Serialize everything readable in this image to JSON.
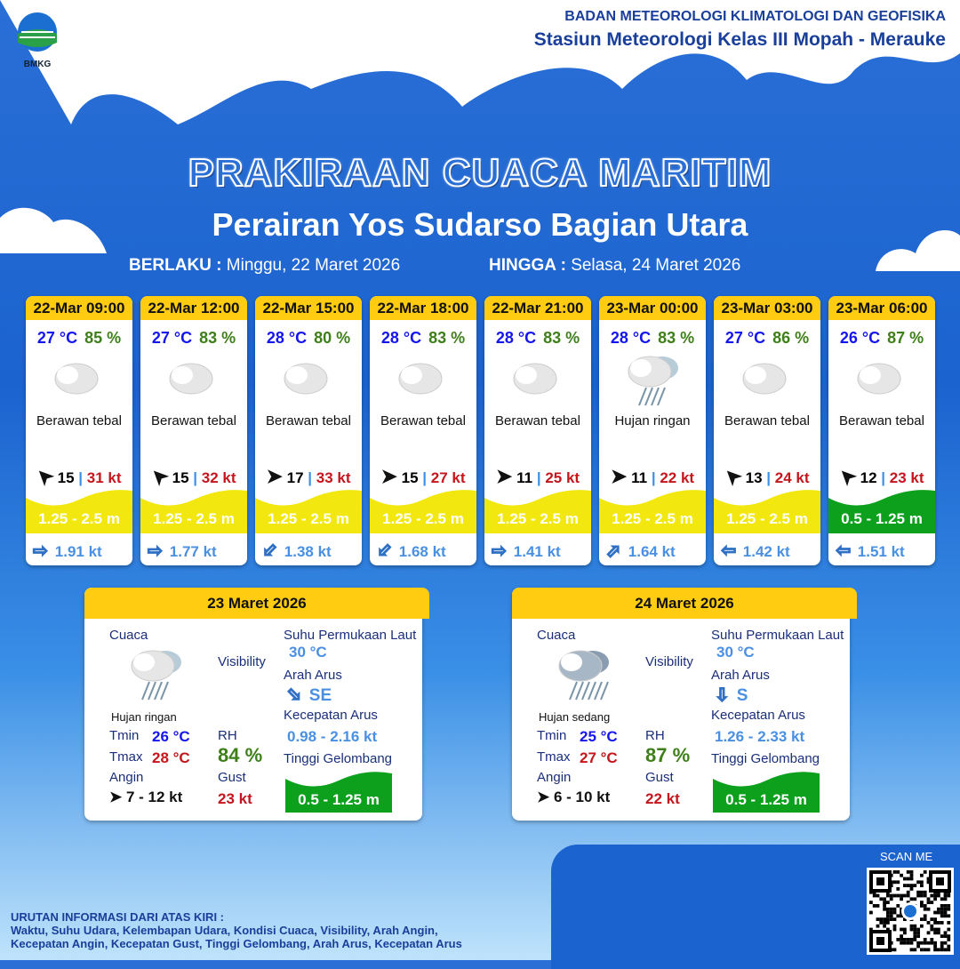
{
  "header": {
    "agency": "BADAN METEOROLOGI KLIMATOLOGI DAN GEOFISIKA",
    "station": "Stasiun Meteorologi Kelas III Mopah - Merauke",
    "logo_text": "BMKG"
  },
  "title": "PRAKIRAAN CUACA MARITIM",
  "subtitle": "Perairan Yos Sudarso Bagian Utara",
  "validity": {
    "from_label": "BERLAKU :",
    "from": "Minggu, 22 Maret 2026",
    "to_label": "HINGGA :",
    "to": "Selasa, 24 Maret 2026"
  },
  "forecasts": [
    {
      "time": "22-Mar 09:00",
      "temp": "27 °C",
      "rh": "85 %",
      "icon": "cloud-icon",
      "cond": "Berawan tebal",
      "wind": "15",
      "gust": "31 kt",
      "wind_dir_deg": 225,
      "wave": "1.25 - 2.5 m",
      "wave_color": "#f2e70f",
      "current": "1.91 kt",
      "current_dir_deg": 0
    },
    {
      "time": "22-Mar 12:00",
      "temp": "27 °C",
      "rh": "83 %",
      "icon": "cloud-icon",
      "cond": "Berawan tebal",
      "wind": "15",
      "gust": "32 kt",
      "wind_dir_deg": 225,
      "wave": "1.25 - 2.5 m",
      "wave_color": "#f2e70f",
      "current": "1.77 kt",
      "current_dir_deg": 0
    },
    {
      "time": "22-Mar 15:00",
      "temp": "28 °C",
      "rh": "80 %",
      "icon": "cloud-icon",
      "cond": "Berawan tebal",
      "wind": "17",
      "gust": "33 kt",
      "wind_dir_deg": 0,
      "wave": "1.25 - 2.5 m",
      "wave_color": "#f2e70f",
      "current": "1.38 kt",
      "current_dir_deg": 135
    },
    {
      "time": "22-Mar 18:00",
      "temp": "28 °C",
      "rh": "83 %",
      "icon": "cloud-icon",
      "cond": "Berawan tebal",
      "wind": "15",
      "gust": "27 kt",
      "wind_dir_deg": 0,
      "wave": "1.25 - 2.5 m",
      "wave_color": "#f2e70f",
      "current": "1.68 kt",
      "current_dir_deg": 135
    },
    {
      "time": "22-Mar 21:00",
      "temp": "28 °C",
      "rh": "83 %",
      "icon": "cloud-icon",
      "cond": "Berawan tebal",
      "wind": "11",
      "gust": "25 kt",
      "wind_dir_deg": 0,
      "wave": "1.25 - 2.5 m",
      "wave_color": "#f2e70f",
      "current": "1.41 kt",
      "current_dir_deg": 0
    },
    {
      "time": "23-Mar 00:00",
      "temp": "28 °C",
      "rh": "83 %",
      "icon": "rain-cloud-icon",
      "cond": "Hujan ringan",
      "wind": "11",
      "gust": "22 kt",
      "wind_dir_deg": 0,
      "wave": "1.25 - 2.5 m",
      "wave_color": "#f2e70f",
      "current": "1.64 kt",
      "current_dir_deg": -45
    },
    {
      "time": "23-Mar 03:00",
      "temp": "27 °C",
      "rh": "86 %",
      "icon": "cloud-icon",
      "cond": "Berawan tebal",
      "wind": "13",
      "gust": "24 kt",
      "wind_dir_deg": 225,
      "wave": "1.25 - 2.5 m",
      "wave_color": "#f2e70f",
      "current": "1.42 kt",
      "current_dir_deg": 180
    },
    {
      "time": "23-Mar 06:00",
      "temp": "26 °C",
      "rh": "87 %",
      "icon": "cloud-icon",
      "cond": "Berawan tebal",
      "wind": "12",
      "gust": "23 kt",
      "wind_dir_deg": 225,
      "wave": "0.5 - 1.25 m",
      "wave_color": "#0ca01c",
      "current": "1.51 kt",
      "current_dir_deg": 180
    }
  ],
  "labels": {
    "cuaca": "Cuaca",
    "visibility": "Visibility",
    "sst": "Suhu Permukaan Laut",
    "arah_arus": "Arah Arus",
    "kec_arus": "Kecepatan Arus",
    "tinggi": "Tinggi Gelombang",
    "tmin": "Tmin",
    "tmax": "Tmax",
    "rh": "RH",
    "angin": "Angin",
    "gust": "Gust"
  },
  "days": [
    {
      "date": "23 Maret 2026",
      "cond": "Hujan ringan",
      "icon": "rain-cloud-icon",
      "tmin": "26 °C",
      "tmax": "28 °C",
      "rh": "84 %",
      "wind": "7  - 12 kt",
      "gust": "23 kt",
      "sst": "30 °C",
      "arus_dir": "SE",
      "arus_deg": 45,
      "arus_speed": "0.98 - 2.16 kt",
      "wave": "0.5 - 1.25 m"
    },
    {
      "date": "24 Maret 2026",
      "cond": "Hujan sedang",
      "icon": "heavy-rain-cloud-icon",
      "tmin": "25 °C",
      "tmax": "27 °C",
      "rh": "87 %",
      "wind": "6  - 10 kt",
      "gust": "22 kt",
      "sst": "30 °C",
      "arus_dir": "S",
      "arus_deg": 90,
      "arus_speed": "1.26 - 2.33 kt",
      "wave": "0.5 - 1.25 m"
    }
  ],
  "scan_me": "SCAN ME",
  "footer": {
    "line1": "URUTAN INFORMASI DARI ATAS KIRI :",
    "line2": "Waktu, Suhu Udara, Kelembapan Udara, Kondisi Cuaca, Visibility, Arah Angin,",
    "line3": "Kecepatan Angin, Kecepatan Gust, Tinggi Gelombang, Arah Arus, Kecepatan Arus"
  }
}
